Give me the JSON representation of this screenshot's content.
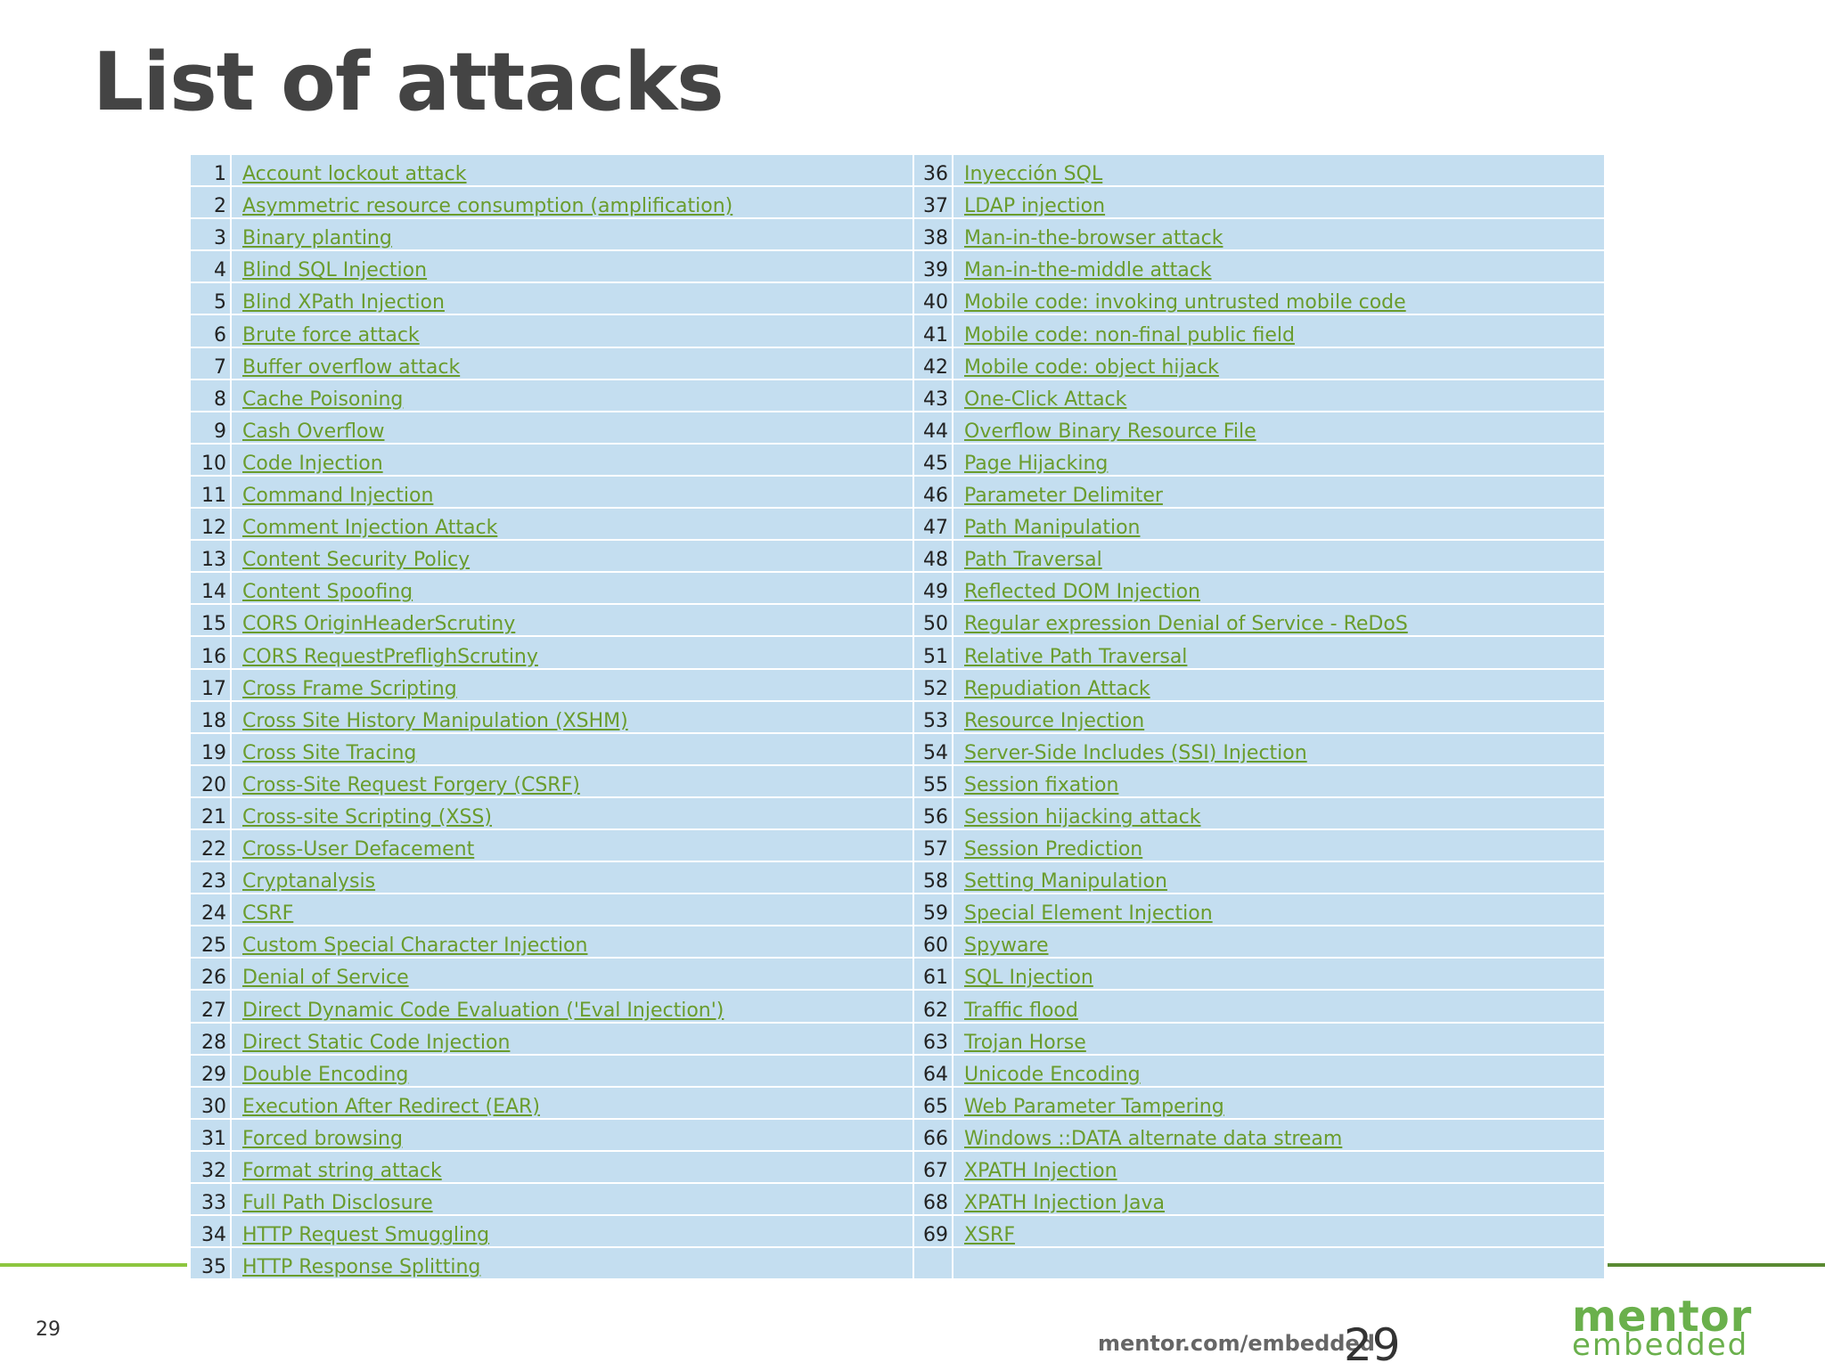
{
  "title": "List of attacks",
  "attacks_left": [
    {
      "num": "1",
      "name": "Account lockout attack"
    },
    {
      "num": "2",
      "name": "Asymmetric resource consumption (amplification)"
    },
    {
      "num": "3",
      "name": "Binary planting"
    },
    {
      "num": "4",
      "name": "Blind SQL Injection"
    },
    {
      "num": "5",
      "name": "Blind XPath Injection"
    },
    {
      "num": "6",
      "name": "Brute force attack"
    },
    {
      "num": "7",
      "name": "Buffer overflow attack"
    },
    {
      "num": "8",
      "name": "Cache Poisoning"
    },
    {
      "num": "9",
      "name": "Cash Overflow"
    },
    {
      "num": "10",
      "name": "Code Injection"
    },
    {
      "num": "11",
      "name": "Command Injection"
    },
    {
      "num": "12",
      "name": "Comment Injection Attack"
    },
    {
      "num": "13",
      "name": "Content Security Policy"
    },
    {
      "num": "14",
      "name": "Content Spoofing"
    },
    {
      "num": "15",
      "name": "CORS OriginHeaderScrutiny"
    },
    {
      "num": "16",
      "name": "CORS RequestPreflighScrutiny"
    },
    {
      "num": "17",
      "name": "Cross Frame Scripting"
    },
    {
      "num": "18",
      "name": "Cross Site History Manipulation (XSHM)"
    },
    {
      "num": "19",
      "name": "Cross Site Tracing"
    },
    {
      "num": "20",
      "name": "Cross-Site Request Forgery (CSRF)"
    },
    {
      "num": "21",
      "name": "Cross-site Scripting (XSS)"
    },
    {
      "num": "22",
      "name": "Cross-User Defacement"
    },
    {
      "num": "23",
      "name": "Cryptanalysis"
    },
    {
      "num": "24",
      "name": "CSRF"
    },
    {
      "num": "25",
      "name": "Custom Special Character Injection"
    },
    {
      "num": "26",
      "name": "Denial of Service"
    },
    {
      "num": "27",
      "name": "Direct Dynamic Code Evaluation ('Eval Injection')"
    },
    {
      "num": "28",
      "name": "Direct Static Code Injection"
    },
    {
      "num": "29",
      "name": "Double Encoding"
    },
    {
      "num": "30",
      "name": "Execution After Redirect (EAR)"
    },
    {
      "num": "31",
      "name": "Forced browsing"
    },
    {
      "num": "32",
      "name": "Format string attack"
    },
    {
      "num": "33",
      "name": "Full Path Disclosure"
    },
    {
      "num": "34",
      "name": "HTTP Request Smuggling"
    },
    {
      "num": "35",
      "name": "HTTP Response Splitting"
    }
  ],
  "attacks_right": [
    {
      "num": "36",
      "name": "Inyección SQL"
    },
    {
      "num": "37",
      "name": "LDAP injection"
    },
    {
      "num": "38",
      "name": "Man-in-the-browser attack"
    },
    {
      "num": "39",
      "name": "Man-in-the-middle attack"
    },
    {
      "num": "40",
      "name": "Mobile code: invoking untrusted mobile code"
    },
    {
      "num": "41",
      "name": "Mobile code: non-final public field"
    },
    {
      "num": "42",
      "name": "Mobile code: object hijack"
    },
    {
      "num": "43",
      "name": "One-Click Attack"
    },
    {
      "num": "44",
      "name": "Overflow Binary Resource File"
    },
    {
      "num": "45",
      "name": "Page Hijacking"
    },
    {
      "num": "46",
      "name": "Parameter Delimiter"
    },
    {
      "num": "47",
      "name": "Path Manipulation"
    },
    {
      "num": "48",
      "name": "Path Traversal"
    },
    {
      "num": "49",
      "name": "Reflected DOM Injection"
    },
    {
      "num": "50",
      "name": "Regular expression Denial of Service - ReDoS"
    },
    {
      "num": "51",
      "name": "Relative Path Traversal"
    },
    {
      "num": "52",
      "name": "Repudiation Attack"
    },
    {
      "num": "53",
      "name": "Resource Injection"
    },
    {
      "num": "54",
      "name": "Server-Side Includes (SSI) Injection"
    },
    {
      "num": "55",
      "name": "Session fixation"
    },
    {
      "num": "56",
      "name": "Session hijacking attack"
    },
    {
      "num": "57",
      "name": "Session Prediction"
    },
    {
      "num": "58",
      "name": "Setting Manipulation"
    },
    {
      "num": "59",
      "name": "Special Element Injection"
    },
    {
      "num": "60",
      "name": "Spyware"
    },
    {
      "num": "61",
      "name": "SQL Injection"
    },
    {
      "num": "62",
      "name": "Traffic flood"
    },
    {
      "num": "63",
      "name": "Trojan Horse"
    },
    {
      "num": "64",
      "name": "Unicode Encoding"
    },
    {
      "num": "65",
      "name": "Web Parameter Tampering"
    },
    {
      "num": "66",
      "name": "Windows ::DATA alternate data stream"
    },
    {
      "num": "67",
      "name": "XPATH Injection"
    },
    {
      "num": "68",
      "name": "XPATH Injection Java"
    },
    {
      "num": "69",
      "name": "XSRF"
    },
    {
      "num": "",
      "name": ""
    }
  ],
  "footer": {
    "page_small": "29",
    "site": "mentor.com/embedded",
    "page_big": "29",
    "logo_line1": "mentor",
    "logo_line2": "embedded"
  },
  "colors": {
    "title": "#444444",
    "row_bg": "#c4def0",
    "link": "#6a9c2d",
    "accent": "#8dc63f"
  }
}
